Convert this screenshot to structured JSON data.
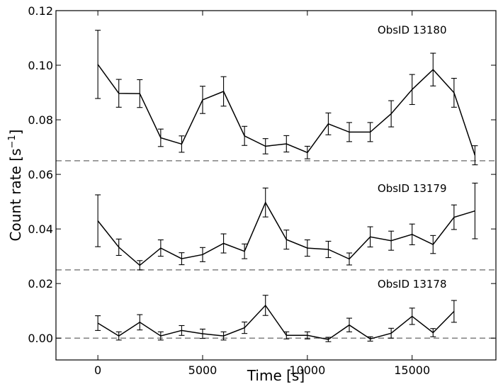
{
  "chart_data": {
    "type": "line",
    "xlabel": "Time [s]",
    "ylabel_main": "Count rate [s",
    "ylabel_sup": "−1",
    "ylabel_tail": "]",
    "xlim": [
      -2000,
      19000
    ],
    "ylim": [
      -0.008,
      0.12
    ],
    "xticks": [
      0,
      5000,
      10000,
      15000
    ],
    "xtick_labels": [
      "0",
      "5000",
      "10000",
      "15000"
    ],
    "yticks": [
      0.0,
      0.02,
      0.04,
      0.06,
      0.08,
      0.1,
      0.12
    ],
    "ytick_labels": [
      "0.00",
      "0.02",
      "0.04",
      "0.06",
      "0.08",
      "0.10",
      "0.12"
    ],
    "baselines": [
      0.0,
      0.025,
      0.065
    ],
    "series": [
      {
        "name": "ObsID 13180",
        "x": [
          0,
          1000,
          2000,
          3000,
          4000,
          5000,
          6000,
          7000,
          8000,
          9000,
          10000,
          11000,
          12000,
          13000,
          14000,
          15000,
          16000,
          17000,
          18000
        ],
        "y": [
          0.1003,
          0.0897,
          0.0896,
          0.0734,
          0.0711,
          0.0873,
          0.0904,
          0.0741,
          0.0703,
          0.0712,
          0.068,
          0.0785,
          0.0755,
          0.0755,
          0.0822,
          0.0911,
          0.0984,
          0.0899,
          0.067
        ],
        "err": [
          0.0125,
          0.0051,
          0.0051,
          0.0032,
          0.003,
          0.005,
          0.0054,
          0.0035,
          0.0028,
          0.003,
          0.0023,
          0.004,
          0.0035,
          0.0035,
          0.0048,
          0.0055,
          0.006,
          0.0053,
          0.0035
        ]
      },
      {
        "name": "ObsID 13179",
        "x": [
          0,
          1000,
          2000,
          3000,
          4000,
          5000,
          6000,
          7000,
          8000,
          9000,
          10000,
          11000,
          12000,
          13000,
          14000,
          15000,
          16000,
          17000,
          18000
        ],
        "y": [
          0.043,
          0.0333,
          0.0267,
          0.033,
          0.0291,
          0.0306,
          0.0347,
          0.0318,
          0.0497,
          0.0361,
          0.033,
          0.0325,
          0.029,
          0.0371,
          0.0357,
          0.038,
          0.0343,
          0.0443,
          0.0466
        ],
        "err": [
          0.0095,
          0.003,
          0.0017,
          0.003,
          0.0022,
          0.0026,
          0.0035,
          0.0027,
          0.0053,
          0.0035,
          0.003,
          0.003,
          0.0022,
          0.0037,
          0.0035,
          0.0038,
          0.0033,
          0.0045,
          0.0102
        ]
      },
      {
        "name": "ObsID 13178",
        "x": [
          0,
          1000,
          2000,
          3000,
          4000,
          5000,
          6000,
          7000,
          8000,
          9000,
          10000,
          11000,
          12000,
          13000,
          14000,
          15000,
          16000,
          17000
        ],
        "y": [
          0.0055,
          0.0008,
          0.0058,
          0.0008,
          0.0028,
          0.0016,
          0.0008,
          0.0038,
          0.012,
          0.001,
          0.001,
          -0.0005,
          0.0048,
          -0.0003,
          0.0018,
          0.008,
          0.002,
          0.0098
        ],
        "err": [
          0.0027,
          0.0015,
          0.0028,
          0.0015,
          0.0018,
          0.0017,
          0.0015,
          0.0021,
          0.0037,
          0.0013,
          0.0013,
          0.0008,
          0.0025,
          0.0008,
          0.0018,
          0.003,
          0.0015,
          0.004
        ]
      }
    ],
    "series_labels": [
      {
        "text": "ObsID 13180",
        "x": 15000,
        "y": 0.1115
      },
      {
        "text": "ObsID 13179",
        "x": 15000,
        "y": 0.0535
      },
      {
        "text": "ObsID 13178",
        "x": 15000,
        "y": 0.0185
      }
    ]
  }
}
